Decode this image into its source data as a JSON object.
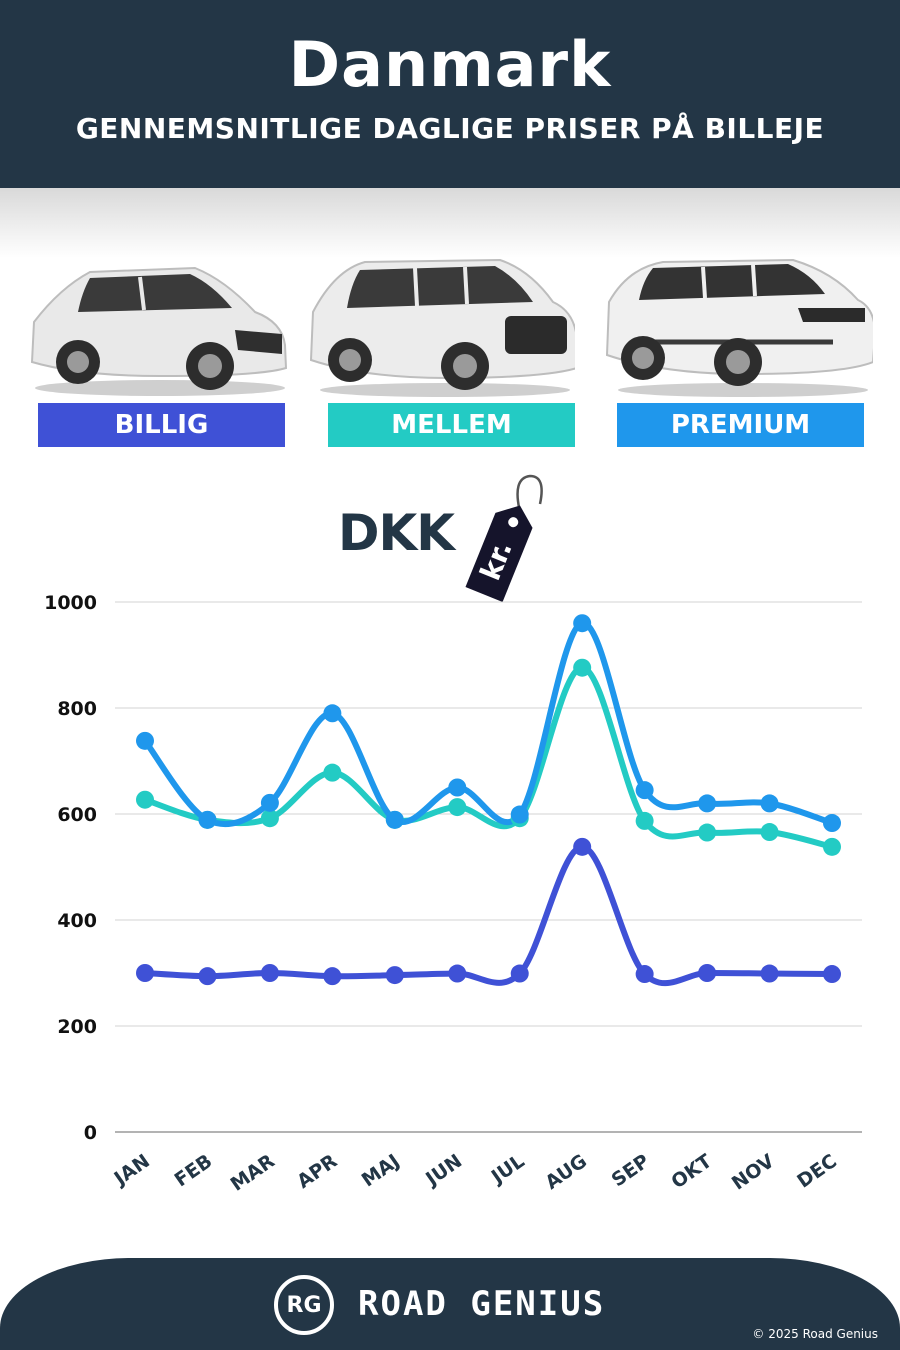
{
  "header": {
    "title": "Danmark",
    "subtitle": "GENNEMSNITLIGE DAGLIGE PRISER PÅ BILLEJE"
  },
  "categories": [
    {
      "label": "BILLIG",
      "color": "#3f51d6",
      "car": "hatchback-car"
    },
    {
      "label": "MELLEM",
      "color": "#23cbc4",
      "car": "suv-car"
    },
    {
      "label": "PREMIUM",
      "color": "#1f97ec",
      "car": "premium-suv-car"
    }
  ],
  "currency": {
    "label": "DKK",
    "tag_text": "kr.",
    "tag_icon": "price-tag-icon"
  },
  "chart_data": {
    "type": "line",
    "categories": [
      "JAN",
      "FEB",
      "MAR",
      "APR",
      "MAJ",
      "JUN",
      "JUL",
      "AUG",
      "SEP",
      "OKT",
      "NOV",
      "DEC"
    ],
    "series": [
      {
        "name": "BILLIG",
        "color": "#3f51d6",
        "values": [
          300,
          294,
          300,
          294,
          296,
          299,
          299,
          538,
          298,
          300,
          299,
          298
        ]
      },
      {
        "name": "MELLEM",
        "color": "#23cbc4",
        "values": [
          627,
          589,
          592,
          678,
          589,
          613,
          592,
          876,
          587,
          565,
          566,
          538
        ]
      },
      {
        "name": "PREMIUM",
        "color": "#1f97ec",
        "values": [
          738,
          589,
          621,
          790,
          589,
          650,
          599,
          960,
          645,
          620,
          620,
          583
        ]
      }
    ],
    "yticks": [
      0,
      200,
      400,
      600,
      800,
      1000
    ],
    "ylim": [
      0,
      1000
    ],
    "grid": true,
    "legend": "none"
  },
  "footer": {
    "logo_text": "RG",
    "brand": "ROAD GENIUS",
    "copyright": "© 2025 Road Genius"
  }
}
